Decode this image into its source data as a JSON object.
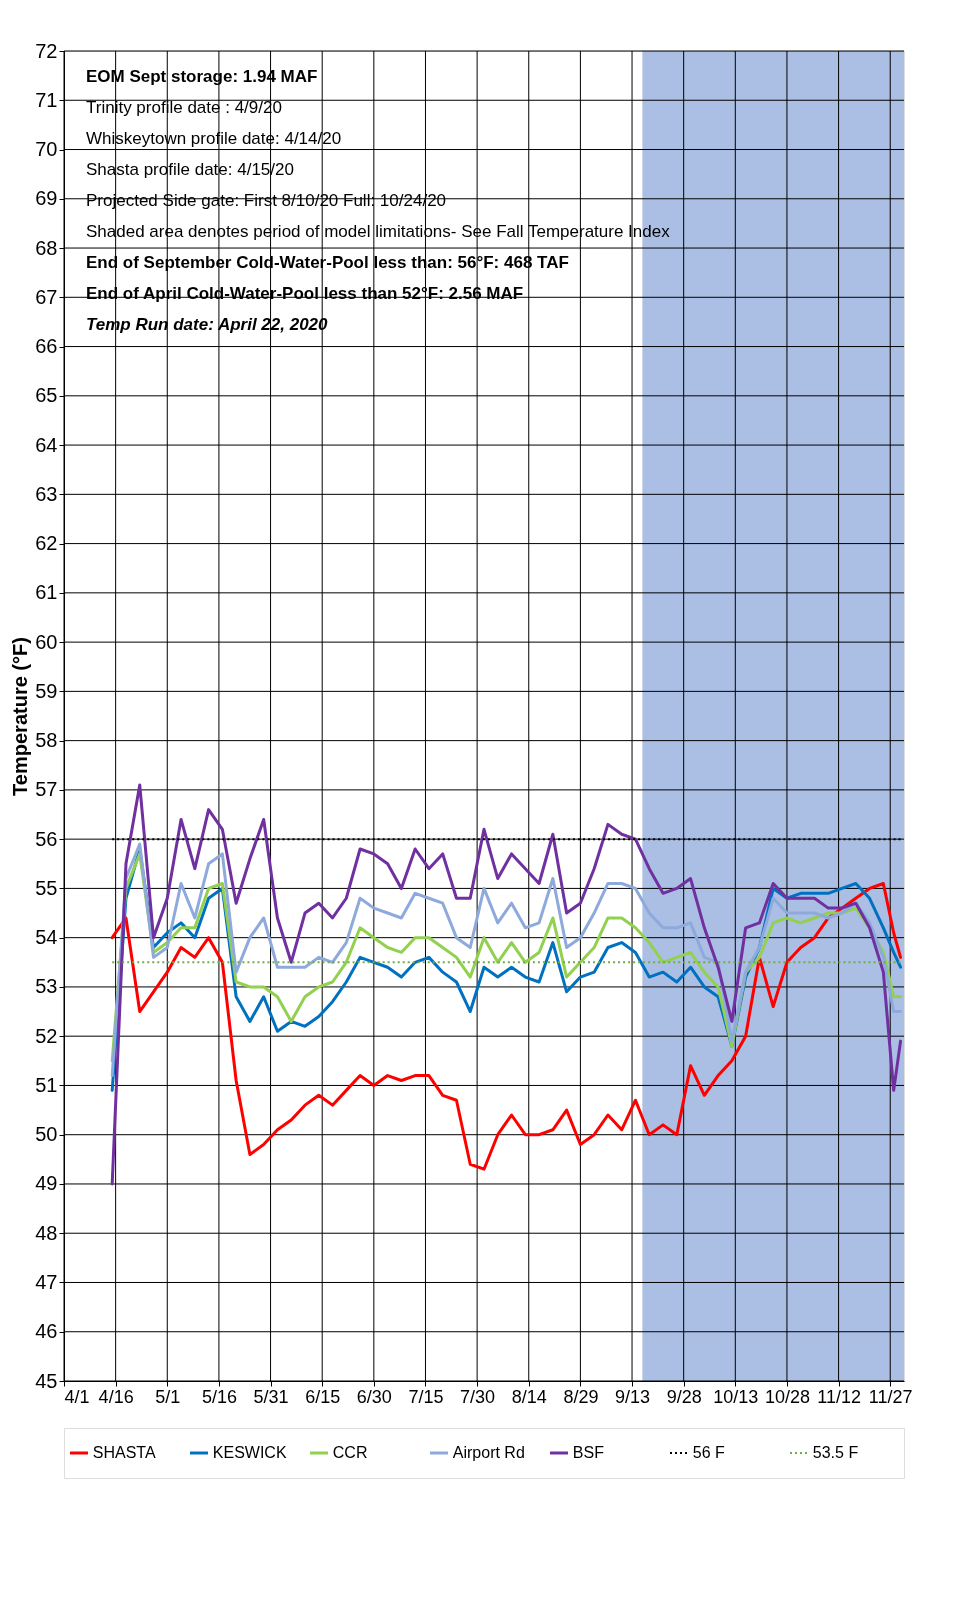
{
  "chart_data": {
    "type": "line",
    "ylabel": "Temperature (°F)",
    "x": [
      "2020-04-15",
      "2020-04-19",
      "2020-04-23",
      "2020-04-27",
      "2020-05-01",
      "2020-05-05",
      "2020-05-09",
      "2020-05-13",
      "2020-05-17",
      "2020-05-21",
      "2020-05-25",
      "2020-05-29",
      "2020-06-02",
      "2020-06-06",
      "2020-06-10",
      "2020-06-14",
      "2020-06-18",
      "2020-06-22",
      "2020-06-26",
      "2020-06-30",
      "2020-07-04",
      "2020-07-08",
      "2020-07-12",
      "2020-07-16",
      "2020-07-20",
      "2020-07-24",
      "2020-07-28",
      "2020-08-01",
      "2020-08-05",
      "2020-08-09",
      "2020-08-13",
      "2020-08-17",
      "2020-08-21",
      "2020-08-25",
      "2020-08-29",
      "2020-09-02",
      "2020-09-06",
      "2020-09-10",
      "2020-09-14",
      "2020-09-18",
      "2020-09-22",
      "2020-09-26",
      "2020-09-30",
      "2020-10-04",
      "2020-10-08",
      "2020-10-12",
      "2020-10-16",
      "2020-10-20",
      "2020-10-24",
      "2020-10-28",
      "2020-11-01",
      "2020-11-05",
      "2020-11-09",
      "2020-11-13",
      "2020-11-17",
      "2020-11-21",
      "2020-11-25",
      "2020-11-28",
      "2020-11-30"
    ],
    "series": [
      {
        "name": "SHASTA",
        "color": "#ff0000",
        "values": [
          54.0,
          54.4,
          52.5,
          52.9,
          53.3,
          53.8,
          53.6,
          54.0,
          53.5,
          51.1,
          49.6,
          49.8,
          50.1,
          50.3,
          50.6,
          50.8,
          50.6,
          50.9,
          51.2,
          51.0,
          51.2,
          51.1,
          51.2,
          51.2,
          50.8,
          50.7,
          49.4,
          49.3,
          50.0,
          50.4,
          50.0,
          50.0,
          50.1,
          50.5,
          49.8,
          50.0,
          50.4,
          50.1,
          50.7,
          50.0,
          50.2,
          50.0,
          51.4,
          50.8,
          51.2,
          51.5,
          52.0,
          53.6,
          52.6,
          53.5,
          53.8,
          54.0,
          54.4,
          54.6,
          54.8,
          55.0,
          55.1,
          54.1,
          53.6
        ]
      },
      {
        "name": "KESWICK",
        "color": "#0070c0",
        "values": [
          50.9,
          54.8,
          55.8,
          53.8,
          54.1,
          54.3,
          54.0,
          54.8,
          55.0,
          52.8,
          52.3,
          52.8,
          52.1,
          52.3,
          52.2,
          52.4,
          52.7,
          53.1,
          53.6,
          53.5,
          53.4,
          53.2,
          53.5,
          53.6,
          53.3,
          53.1,
          52.5,
          53.4,
          53.2,
          53.4,
          53.2,
          53.1,
          53.9,
          52.9,
          53.2,
          53.3,
          53.8,
          53.9,
          53.7,
          53.2,
          53.3,
          53.1,
          53.4,
          53.0,
          52.8,
          51.8,
          53.2,
          53.8,
          55.0,
          54.8,
          54.9,
          54.9,
          54.9,
          55.0,
          55.1,
          54.8,
          54.2,
          53.7,
          53.4
        ]
      },
      {
        "name": "CCR",
        "color": "#92d050",
        "values": [
          51.5,
          55.0,
          55.7,
          53.7,
          53.9,
          54.2,
          54.2,
          55.0,
          55.1,
          53.1,
          53.0,
          53.0,
          52.8,
          52.3,
          52.8,
          53.0,
          53.1,
          53.5,
          54.2,
          54.0,
          53.8,
          53.7,
          54.0,
          54.0,
          53.8,
          53.6,
          53.2,
          54.0,
          53.5,
          53.9,
          53.5,
          53.7,
          54.4,
          53.2,
          53.5,
          53.8,
          54.4,
          54.4,
          54.2,
          53.9,
          53.5,
          53.6,
          53.7,
          53.3,
          53.0,
          51.8,
          53.3,
          53.6,
          54.3,
          54.4,
          54.3,
          54.4,
          54.5,
          54.5,
          54.6,
          54.2,
          53.7,
          52.8,
          52.8
        ]
      },
      {
        "name": "Airport Rd",
        "color": "#8ea9db",
        "values": [
          51.2,
          55.2,
          55.9,
          53.6,
          53.8,
          55.1,
          54.4,
          55.5,
          55.7,
          53.3,
          54.0,
          54.4,
          53.4,
          53.4,
          53.4,
          53.6,
          53.5,
          53.9,
          54.8,
          54.6,
          54.5,
          54.4,
          54.9,
          54.8,
          54.7,
          54.0,
          53.8,
          55.0,
          54.3,
          54.7,
          54.2,
          54.3,
          55.2,
          53.8,
          54.0,
          54.5,
          55.1,
          55.1,
          55.0,
          54.5,
          54.2,
          54.2,
          54.3,
          53.6,
          53.5,
          51.9,
          53.3,
          53.8,
          54.8,
          54.5,
          54.5,
          54.5,
          54.4,
          54.5,
          54.7,
          54.3,
          53.6,
          52.5,
          52.5
        ]
      },
      {
        "name": "BSF",
        "color": "#7030a0",
        "values": [
          49.0,
          55.5,
          57.1,
          54.0,
          54.8,
          56.4,
          55.4,
          56.6,
          56.2,
          54.7,
          55.6,
          56.4,
          54.4,
          53.5,
          54.5,
          54.7,
          54.4,
          54.8,
          55.8,
          55.7,
          55.5,
          55.0,
          55.8,
          55.4,
          55.7,
          54.8,
          54.8,
          56.2,
          55.2,
          55.7,
          55.4,
          55.1,
          56.1,
          54.5,
          54.7,
          55.4,
          56.3,
          56.1,
          56.0,
          55.4,
          54.9,
          55.0,
          55.2,
          54.2,
          53.4,
          52.3,
          54.2,
          54.3,
          55.1,
          54.8,
          54.8,
          54.8,
          54.6,
          54.6,
          54.7,
          54.2,
          53.3,
          50.9,
          51.9
        ]
      },
      {
        "name": "56 F",
        "color": "#000000",
        "line_style": "dotted",
        "x": [
          "2020-04-15",
          "2020-11-30"
        ],
        "values": [
          56,
          56
        ]
      },
      {
        "name": "53.5 F",
        "color": "#70ad47",
        "line_style": "dotted",
        "x": [
          "2020-04-15",
          "2020-11-30"
        ],
        "values": [
          53.5,
          53.5
        ]
      }
    ],
    "xlim": [
      "2020-04-01",
      "2020-12-01"
    ],
    "xticks": [
      {
        "value": "2020-04-01",
        "label": "4/1"
      },
      {
        "value": "2020-04-16",
        "label": "4/16"
      },
      {
        "value": "2020-05-01",
        "label": "5/1"
      },
      {
        "value": "2020-05-16",
        "label": "5/16"
      },
      {
        "value": "2020-05-31",
        "label": "5/31"
      },
      {
        "value": "2020-06-15",
        "label": "6/15"
      },
      {
        "value": "2020-06-30",
        "label": "6/30"
      },
      {
        "value": "2020-07-15",
        "label": "7/15"
      },
      {
        "value": "2020-07-30",
        "label": "7/30"
      },
      {
        "value": "2020-08-14",
        "label": "8/14"
      },
      {
        "value": "2020-08-29",
        "label": "8/29"
      },
      {
        "value": "2020-09-13",
        "label": "9/13"
      },
      {
        "value": "2020-09-28",
        "label": "9/28"
      },
      {
        "value": "2020-10-13",
        "label": "10/13"
      },
      {
        "value": "2020-10-28",
        "label": "10/28"
      },
      {
        "value": "2020-11-12",
        "label": "11/12"
      },
      {
        "value": "2020-11-27",
        "label": "11/27"
      }
    ],
    "ylim": [
      45,
      72
    ],
    "yticks": [
      45,
      46,
      47,
      48,
      49,
      50,
      51,
      52,
      53,
      54,
      55,
      56,
      57,
      58,
      59,
      60,
      61,
      62,
      63,
      64,
      65,
      66,
      67,
      68,
      69,
      70,
      71,
      72
    ],
    "bands": [
      {
        "axis": "x",
        "from": "2020-09-16",
        "to": "2020-12-01",
        "color": "#4472c4"
      }
    ],
    "annotations": [
      "EOM Sept storage: 1.94 MAF",
      "Trinity profile date : 4/9/20",
      "Whiskeytown  profile date: 4/14/20",
      "Shasta profile date: 4/15/20",
      "Projected Side gate: First  8/10/20 Full:  10/24/20",
      "Shaded area denotes period of model limitations- See Fall Temperature Index",
      "End of September Cold-Water-Pool less than: 56°F: 468 TAF",
      "End of April Cold-Water-Pool less than 52°F: 2.56 MAF",
      "Temp Run date: April 22, 2020"
    ],
    "grid": true,
    "legend": "bottom"
  }
}
